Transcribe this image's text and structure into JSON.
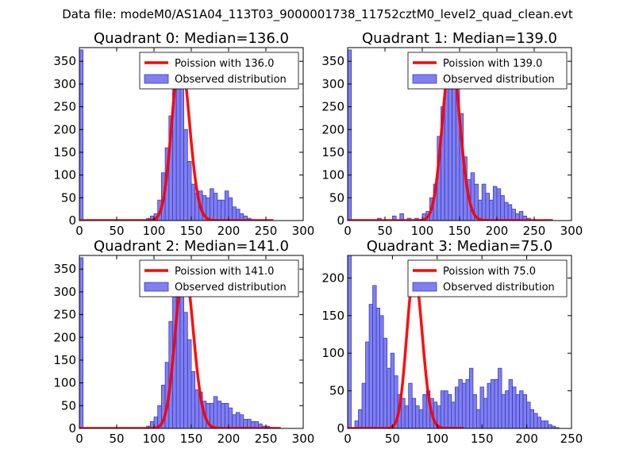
{
  "suptitle": "Data file: modeM0/AS1A04_113T03_9000001738_11752cztM0_level2_quad_clean.evt",
  "colors": {
    "hist_fill": "#7f7ff0",
    "hist_edge": "#3b3bbf",
    "poisson": "#ff0000",
    "axis": "#000000"
  },
  "chart_data": [
    {
      "type": "bar",
      "title": "Quadrant 0: Median=136.0",
      "legend": [
        "Poission with 136.0",
        "Observed distribution"
      ],
      "legend_position": "top-right",
      "xlim": [
        0,
        300
      ],
      "ylim": [
        0,
        380
      ],
      "xticks": [
        0,
        50,
        100,
        150,
        200,
        250,
        300
      ],
      "yticks": [
        0,
        50,
        100,
        150,
        200,
        250,
        300,
        350
      ],
      "bin_width": 5,
      "bins_x": [
        0,
        90,
        95,
        100,
        105,
        110,
        115,
        120,
        125,
        130,
        135,
        140,
        145,
        150,
        155,
        160,
        165,
        170,
        175,
        180,
        185,
        190,
        195,
        200,
        205,
        210,
        215,
        220,
        225,
        230,
        235,
        240
      ],
      "bins_y": [
        375,
        5,
        10,
        15,
        45,
        105,
        160,
        230,
        330,
        360,
        340,
        200,
        130,
        80,
        60,
        65,
        55,
        50,
        70,
        60,
        45,
        45,
        65,
        50,
        30,
        25,
        15,
        10,
        5,
        2,
        1,
        1
      ],
      "poisson": {
        "lambda": 136.0,
        "x_range": [
          0,
          260
        ],
        "peak": 363
      }
    },
    {
      "type": "bar",
      "title": "Quadrant 1: Median=139.0",
      "legend": [
        "Poission with 139.0",
        "Observed distribution"
      ],
      "legend_position": "top-right",
      "xlim": [
        0,
        300
      ],
      "ylim": [
        0,
        380
      ],
      "xticks": [
        0,
        50,
        100,
        150,
        200,
        250,
        300
      ],
      "yticks": [
        0,
        50,
        100,
        150,
        200,
        250,
        300,
        350
      ],
      "bin_width": 5,
      "bins_x": [
        0,
        40,
        60,
        70,
        80,
        90,
        100,
        105,
        110,
        115,
        120,
        125,
        130,
        135,
        140,
        145,
        150,
        155,
        160,
        165,
        170,
        175,
        180,
        185,
        190,
        195,
        200,
        205,
        210,
        215,
        220,
        225,
        230,
        235,
        240,
        250
      ],
      "bins_y": [
        375,
        5,
        10,
        15,
        5,
        5,
        15,
        20,
        50,
        80,
        185,
        250,
        345,
        320,
        350,
        310,
        235,
        140,
        90,
        105,
        80,
        45,
        80,
        60,
        45,
        75,
        70,
        55,
        40,
        35,
        25,
        15,
        20,
        10,
        5,
        1
      ],
      "poisson": {
        "lambda": 139.0,
        "x_range": [
          0,
          275
        ],
        "peak": 358
      }
    },
    {
      "type": "bar",
      "title": "Quadrant 2: Median=141.0",
      "legend": [
        "Poission with 141.0",
        "Observed distribution"
      ],
      "legend_position": "top-right",
      "xlim": [
        0,
        300
      ],
      "ylim": [
        0,
        380
      ],
      "xticks": [
        0,
        50,
        100,
        150,
        200,
        250,
        300
      ],
      "yticks": [
        0,
        50,
        100,
        150,
        200,
        250,
        300,
        350
      ],
      "bin_width": 5,
      "bins_x": [
        0,
        90,
        95,
        100,
        105,
        110,
        115,
        120,
        125,
        130,
        135,
        140,
        145,
        150,
        155,
        160,
        165,
        170,
        175,
        180,
        185,
        190,
        195,
        200,
        205,
        210,
        215,
        220,
        225,
        230,
        235,
        240,
        245,
        250,
        255
      ],
      "bins_y": [
        375,
        5,
        15,
        25,
        50,
        95,
        145,
        235,
        345,
        360,
        290,
        255,
        195,
        125,
        85,
        80,
        60,
        55,
        55,
        70,
        60,
        55,
        55,
        45,
        30,
        35,
        30,
        20,
        20,
        15,
        15,
        10,
        5,
        5,
        2
      ],
      "poisson": {
        "lambda": 141.0,
        "x_range": [
          0,
          270
        ],
        "peak": 357
      }
    },
    {
      "type": "bar",
      "title": "Quadrant 3: Median=75.0",
      "legend": [
        "Poission with 75.0",
        "Observed distribution"
      ],
      "legend_position": "top-right",
      "xlim": [
        0,
        250
      ],
      "ylim": [
        0,
        230
      ],
      "xticks": [
        0,
        50,
        100,
        150,
        200,
        250
      ],
      "yticks": [
        0,
        50,
        100,
        150,
        200
      ],
      "bin_width": 4,
      "bins_x": [
        0,
        8,
        12,
        16,
        20,
        24,
        28,
        32,
        36,
        40,
        44,
        48,
        52,
        56,
        60,
        64,
        68,
        72,
        76,
        80,
        84,
        88,
        92,
        96,
        100,
        104,
        108,
        112,
        116,
        120,
        124,
        128,
        132,
        136,
        140,
        144,
        148,
        152,
        156,
        160,
        164,
        168,
        172,
        176,
        180,
        184,
        188,
        192,
        196,
        200,
        204,
        208,
        212,
        216,
        220,
        224,
        228,
        232
      ],
      "bins_y": [
        230,
        10,
        25,
        60,
        115,
        165,
        190,
        160,
        150,
        120,
        80,
        100,
        70,
        45,
        40,
        30,
        60,
        40,
        30,
        25,
        45,
        50,
        40,
        35,
        30,
        50,
        50,
        45,
        35,
        55,
        65,
        60,
        65,
        80,
        45,
        25,
        55,
        40,
        60,
        65,
        65,
        80,
        45,
        50,
        65,
        55,
        45,
        50,
        45,
        35,
        25,
        20,
        15,
        10,
        10,
        5,
        3,
        1
      ],
      "poisson": {
        "lambda": 75.0,
        "x_range": [
          0,
          130
        ],
        "peak": 206
      }
    }
  ]
}
